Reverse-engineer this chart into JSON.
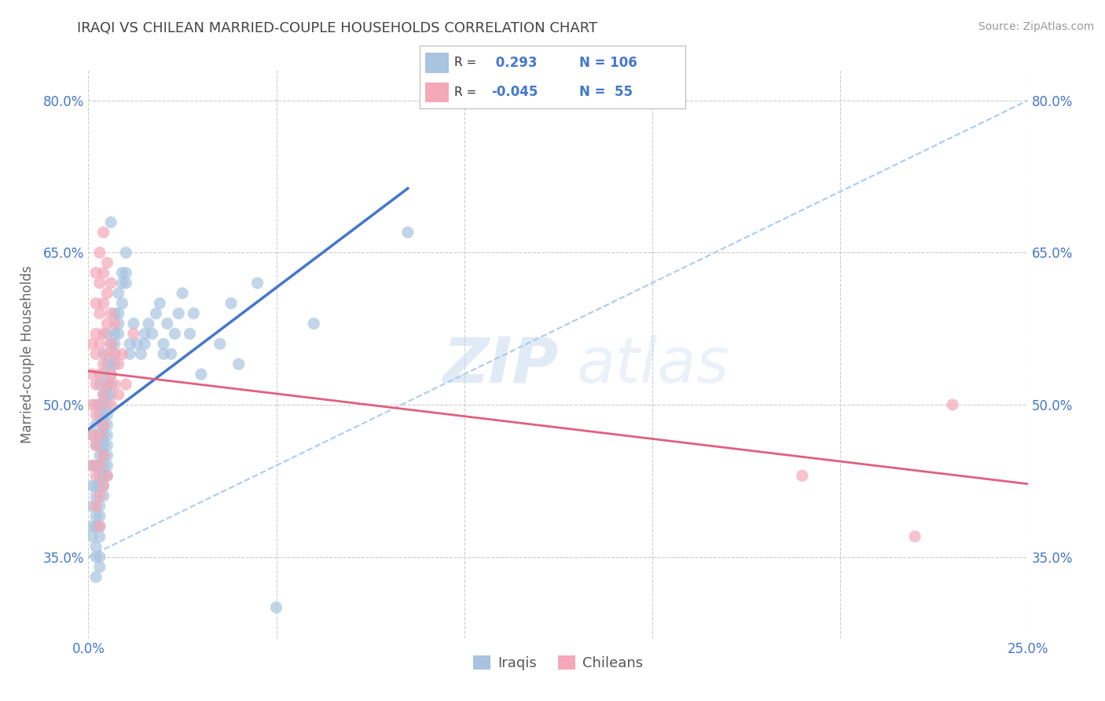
{
  "title": "IRAQI VS CHILEAN MARRIED-COUPLE HOUSEHOLDS CORRELATION CHART",
  "source_text": "Source: ZipAtlas.com",
  "ylabel": "Married-couple Households",
  "xmin": 0.0,
  "xmax": 0.25,
  "ymin": 0.27,
  "ymax": 0.83,
  "yticks": [
    0.35,
    0.5,
    0.65,
    0.8
  ],
  "ytick_labels": [
    "35.0%",
    "50.0%",
    "65.0%",
    "80.0%"
  ],
  "xticks": [
    0.0,
    0.05,
    0.1,
    0.15,
    0.2,
    0.25
  ],
  "xtick_labels": [
    "0.0%",
    "",
    "",
    "",
    "",
    "25.0%"
  ],
  "iraqi_color": "#a8c4e0",
  "chilean_color": "#f4a8b8",
  "iraqi_line_color": "#4477cc",
  "chilean_line_color": "#e06080",
  "dash_color": "#aaccee",
  "iraqi_R": 0.293,
  "iraqi_N": 106,
  "chilean_R": -0.045,
  "chilean_N": 55,
  "legend_label_iraqi": "Iraqis",
  "legend_label_chilean": "Chileans",
  "watermark_color": "#c5d8ee",
  "background_color": "#ffffff",
  "grid_color": "#cccccc",
  "title_color": "#444444",
  "label_color": "#4477cc",
  "iraqi_points": [
    [
      0.001,
      0.47
    ],
    [
      0.001,
      0.44
    ],
    [
      0.001,
      0.42
    ],
    [
      0.001,
      0.4
    ],
    [
      0.001,
      0.38
    ],
    [
      0.001,
      0.37
    ],
    [
      0.002,
      0.5
    ],
    [
      0.002,
      0.48
    ],
    [
      0.002,
      0.46
    ],
    [
      0.002,
      0.44
    ],
    [
      0.002,
      0.42
    ],
    [
      0.002,
      0.41
    ],
    [
      0.002,
      0.39
    ],
    [
      0.002,
      0.38
    ],
    [
      0.002,
      0.36
    ],
    [
      0.002,
      0.35
    ],
    [
      0.002,
      0.33
    ],
    [
      0.003,
      0.52
    ],
    [
      0.003,
      0.5
    ],
    [
      0.003,
      0.49
    ],
    [
      0.003,
      0.47
    ],
    [
      0.003,
      0.46
    ],
    [
      0.003,
      0.45
    ],
    [
      0.003,
      0.44
    ],
    [
      0.003,
      0.43
    ],
    [
      0.003,
      0.42
    ],
    [
      0.003,
      0.4
    ],
    [
      0.003,
      0.39
    ],
    [
      0.003,
      0.38
    ],
    [
      0.003,
      0.37
    ],
    [
      0.003,
      0.35
    ],
    [
      0.003,
      0.34
    ],
    [
      0.004,
      0.55
    ],
    [
      0.004,
      0.53
    ],
    [
      0.004,
      0.51
    ],
    [
      0.004,
      0.5
    ],
    [
      0.004,
      0.49
    ],
    [
      0.004,
      0.48
    ],
    [
      0.004,
      0.47
    ],
    [
      0.004,
      0.46
    ],
    [
      0.004,
      0.45
    ],
    [
      0.004,
      0.44
    ],
    [
      0.004,
      0.43
    ],
    [
      0.004,
      0.42
    ],
    [
      0.004,
      0.41
    ],
    [
      0.005,
      0.57
    ],
    [
      0.005,
      0.54
    ],
    [
      0.005,
      0.52
    ],
    [
      0.005,
      0.51
    ],
    [
      0.005,
      0.5
    ],
    [
      0.005,
      0.49
    ],
    [
      0.005,
      0.48
    ],
    [
      0.005,
      0.47
    ],
    [
      0.005,
      0.46
    ],
    [
      0.005,
      0.45
    ],
    [
      0.005,
      0.44
    ],
    [
      0.005,
      0.43
    ],
    [
      0.006,
      0.68
    ],
    [
      0.006,
      0.56
    ],
    [
      0.006,
      0.54
    ],
    [
      0.006,
      0.53
    ],
    [
      0.006,
      0.52
    ],
    [
      0.006,
      0.51
    ],
    [
      0.007,
      0.59
    ],
    [
      0.007,
      0.57
    ],
    [
      0.007,
      0.56
    ],
    [
      0.007,
      0.55
    ],
    [
      0.007,
      0.54
    ],
    [
      0.008,
      0.61
    ],
    [
      0.008,
      0.59
    ],
    [
      0.008,
      0.58
    ],
    [
      0.008,
      0.57
    ],
    [
      0.009,
      0.63
    ],
    [
      0.009,
      0.62
    ],
    [
      0.009,
      0.6
    ],
    [
      0.01,
      0.65
    ],
    [
      0.01,
      0.63
    ],
    [
      0.01,
      0.62
    ],
    [
      0.011,
      0.56
    ],
    [
      0.011,
      0.55
    ],
    [
      0.012,
      0.58
    ],
    [
      0.013,
      0.56
    ],
    [
      0.014,
      0.55
    ],
    [
      0.015,
      0.57
    ],
    [
      0.015,
      0.56
    ],
    [
      0.016,
      0.58
    ],
    [
      0.017,
      0.57
    ],
    [
      0.018,
      0.59
    ],
    [
      0.019,
      0.6
    ],
    [
      0.02,
      0.56
    ],
    [
      0.02,
      0.55
    ],
    [
      0.021,
      0.58
    ],
    [
      0.022,
      0.55
    ],
    [
      0.023,
      0.57
    ],
    [
      0.024,
      0.59
    ],
    [
      0.025,
      0.61
    ],
    [
      0.027,
      0.57
    ],
    [
      0.028,
      0.59
    ],
    [
      0.03,
      0.53
    ],
    [
      0.035,
      0.56
    ],
    [
      0.038,
      0.6
    ],
    [
      0.04,
      0.54
    ],
    [
      0.045,
      0.62
    ],
    [
      0.05,
      0.3
    ],
    [
      0.06,
      0.58
    ],
    [
      0.085,
      0.67
    ]
  ],
  "chilean_points": [
    [
      0.001,
      0.56
    ],
    [
      0.001,
      0.53
    ],
    [
      0.001,
      0.5
    ],
    [
      0.001,
      0.47
    ],
    [
      0.001,
      0.44
    ],
    [
      0.002,
      0.63
    ],
    [
      0.002,
      0.6
    ],
    [
      0.002,
      0.57
    ],
    [
      0.002,
      0.55
    ],
    [
      0.002,
      0.52
    ],
    [
      0.002,
      0.49
    ],
    [
      0.002,
      0.46
    ],
    [
      0.002,
      0.43
    ],
    [
      0.002,
      0.4
    ],
    [
      0.003,
      0.65
    ],
    [
      0.003,
      0.62
    ],
    [
      0.003,
      0.59
    ],
    [
      0.003,
      0.56
    ],
    [
      0.003,
      0.53
    ],
    [
      0.003,
      0.5
    ],
    [
      0.003,
      0.47
    ],
    [
      0.003,
      0.44
    ],
    [
      0.003,
      0.41
    ],
    [
      0.003,
      0.38
    ],
    [
      0.004,
      0.67
    ],
    [
      0.004,
      0.63
    ],
    [
      0.004,
      0.6
    ],
    [
      0.004,
      0.57
    ],
    [
      0.004,
      0.54
    ],
    [
      0.004,
      0.51
    ],
    [
      0.004,
      0.48
    ],
    [
      0.004,
      0.45
    ],
    [
      0.004,
      0.42
    ],
    [
      0.005,
      0.64
    ],
    [
      0.005,
      0.61
    ],
    [
      0.005,
      0.58
    ],
    [
      0.005,
      0.55
    ],
    [
      0.005,
      0.52
    ],
    [
      0.005,
      0.43
    ],
    [
      0.006,
      0.62
    ],
    [
      0.006,
      0.59
    ],
    [
      0.006,
      0.56
    ],
    [
      0.006,
      0.53
    ],
    [
      0.006,
      0.5
    ],
    [
      0.007,
      0.58
    ],
    [
      0.007,
      0.55
    ],
    [
      0.007,
      0.52
    ],
    [
      0.008,
      0.54
    ],
    [
      0.008,
      0.51
    ],
    [
      0.009,
      0.55
    ],
    [
      0.01,
      0.52
    ],
    [
      0.012,
      0.57
    ],
    [
      0.19,
      0.43
    ],
    [
      0.22,
      0.37
    ],
    [
      0.23,
      0.5
    ]
  ]
}
